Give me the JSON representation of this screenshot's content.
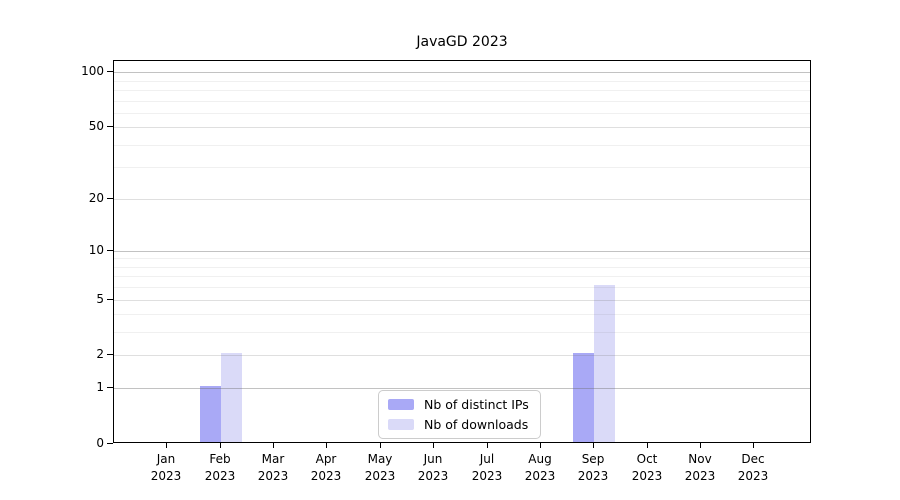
{
  "figure": {
    "title": "JavaGD 2023",
    "background": "#ffffff"
  },
  "chart_data": {
    "type": "bar",
    "title": "JavaGD 2023",
    "x": {
      "categories": [
        "Jan",
        "Feb",
        "Mar",
        "Apr",
        "May",
        "Jun",
        "Jul",
        "Aug",
        "Sep",
        "Oct",
        "Nov",
        "Dec"
      ],
      "year_label": "2023"
    },
    "series": [
      {
        "name": "Nb of distinct IPs",
        "color": "#a9a9f6",
        "values": [
          0,
          1,
          0,
          0,
          0,
          0,
          0,
          0,
          2,
          0,
          0,
          0
        ]
      },
      {
        "name": "Nb of downloads",
        "color": "#dadaf8",
        "values": [
          0,
          2,
          0,
          0,
          0,
          0,
          0,
          0,
          6,
          0,
          0,
          0
        ]
      }
    ],
    "y_axis": {
      "scale": "log10(1+y)",
      "tick_values": [
        0,
        1,
        2,
        5,
        10,
        20,
        50,
        100
      ],
      "tick_labels": [
        "0",
        "1",
        "2",
        "5",
        "10",
        "20",
        "50",
        "100"
      ],
      "ymax": 115,
      "gridline_levels": {
        "decade": [
          1,
          10,
          100
        ],
        "mid": [
          2,
          5,
          20,
          50
        ],
        "minor": [
          3,
          4,
          6,
          7,
          8,
          9,
          30,
          40,
          60,
          70,
          80,
          90
        ]
      }
    },
    "legend": {
      "position": "bottom-center",
      "entries": [
        "Nb of distinct IPs",
        "Nb of downloads"
      ]
    },
    "grid": true
  },
  "colors": {
    "grid_decade": "rgba(110,110,110,0.42)",
    "grid_mid": "rgba(110,110,110,0.22)",
    "grid_minor": "rgba(110,110,110,0.10)",
    "axis": "#000000"
  }
}
